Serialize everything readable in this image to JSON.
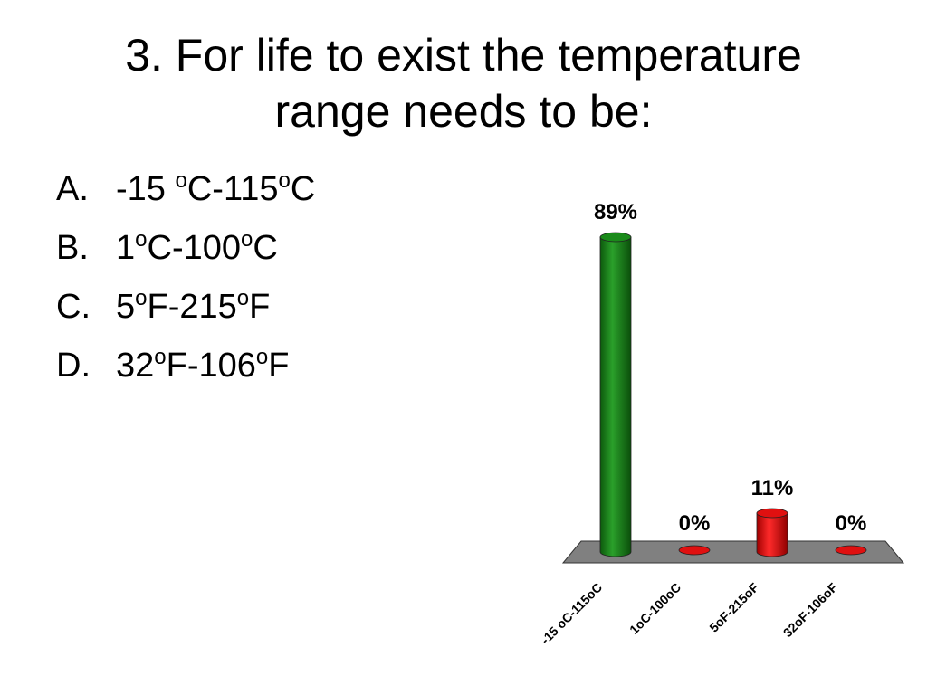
{
  "slide": {
    "title_line1": "3. For life to exist the temperature",
    "title_line2": "range needs to be:",
    "answers": [
      {
        "letter": "A.",
        "parts": [
          "-15 ",
          "o",
          "C-115",
          "o",
          "C"
        ]
      },
      {
        "letter": "B.",
        "parts": [
          "1",
          "o",
          "C-100",
          "o",
          "C"
        ]
      },
      {
        "letter": "C.",
        "parts": [
          "5",
          "o",
          "F-215",
          "o",
          "F"
        ]
      },
      {
        "letter": "D.",
        "parts": [
          "32",
          "o",
          "F-106",
          "o",
          "F"
        ]
      }
    ]
  },
  "chart_data": {
    "type": "bar",
    "categories": [
      "-15 oC-115oC",
      "1oC-100oC",
      "5oF-215oF",
      "32oF-106oF"
    ],
    "values": [
      89,
      0,
      11,
      0
    ],
    "data_labels": [
      "89%",
      "0%",
      "11%",
      "0%"
    ],
    "ylim": [
      0,
      100
    ],
    "colors": [
      "#1a8a1a",
      "#e01010",
      "#e01010",
      "#e01010"
    ],
    "floor_color": "#808080"
  }
}
